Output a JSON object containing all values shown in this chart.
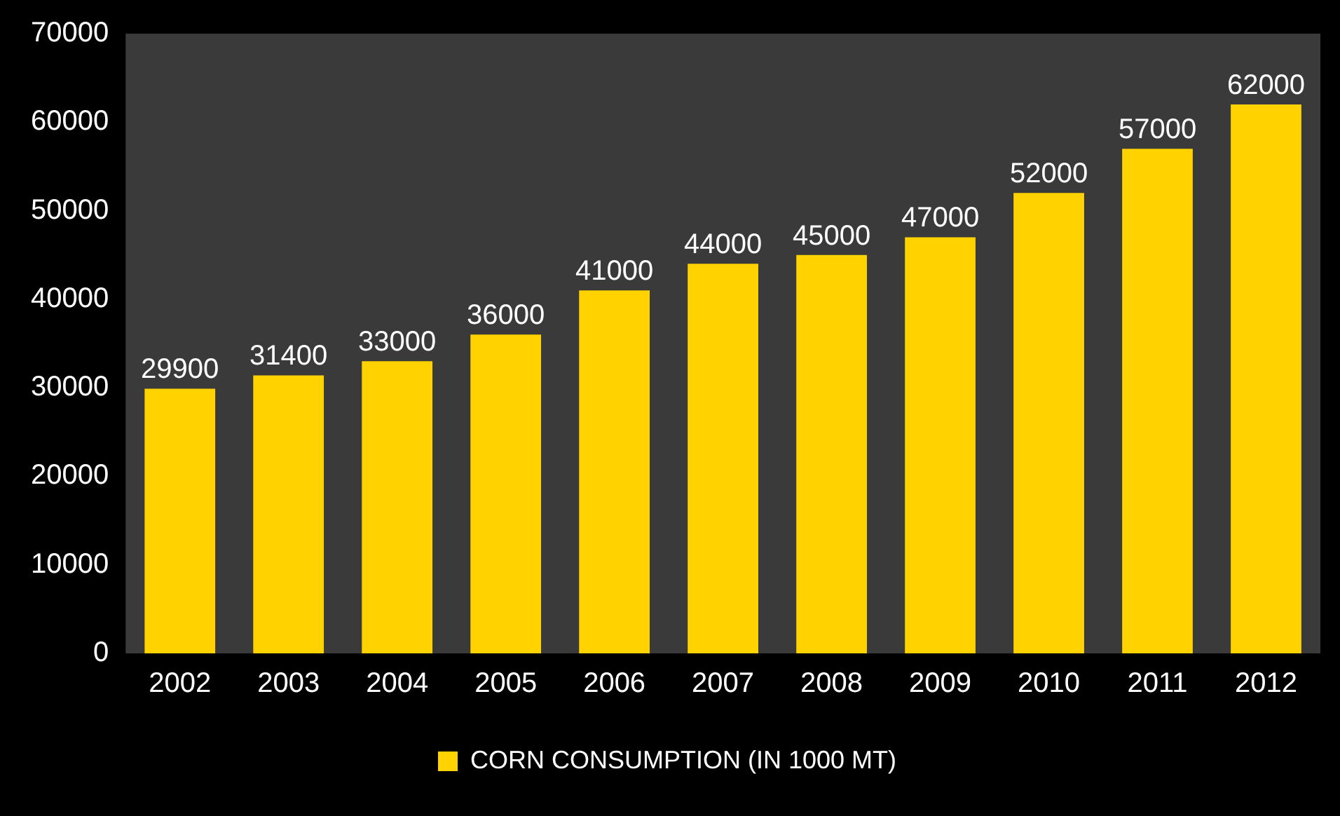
{
  "chart_data": {
    "type": "bar",
    "categories": [
      "2002",
      "2003",
      "2004",
      "2005",
      "2006",
      "2007",
      "2008",
      "2009",
      "2010",
      "2011",
      "2012"
    ],
    "series": [
      {
        "name": "CORN CONSUMPTION (IN 1000 MT)",
        "color": "#ffd200",
        "values": [
          29900,
          31400,
          33000,
          36000,
          41000,
          44000,
          45000,
          47000,
          52000,
          57000,
          62000
        ]
      }
    ],
    "ylim": [
      0,
      70000
    ],
    "yticks": [
      0,
      10000,
      20000,
      30000,
      40000,
      50000,
      60000,
      70000
    ],
    "grid": false,
    "legend": "bottom",
    "data_labels": true
  }
}
